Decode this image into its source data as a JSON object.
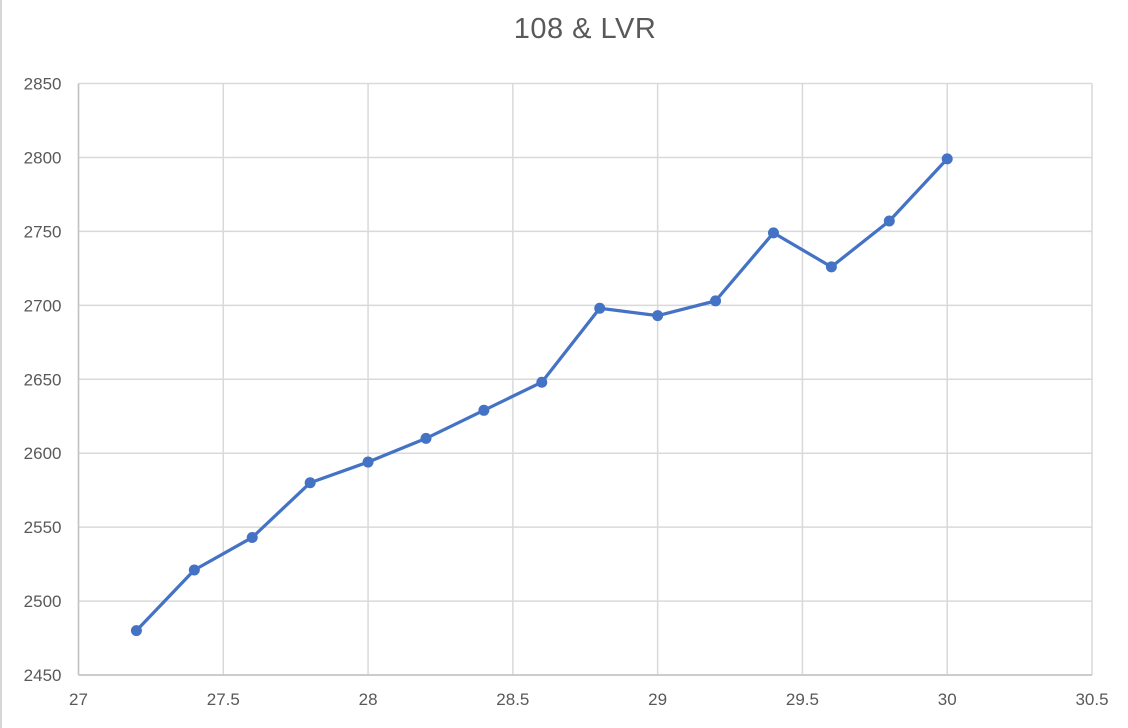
{
  "page": {
    "background": "#ffffff"
  },
  "chart_data": {
    "type": "line",
    "title": "108 & LVR",
    "x": [
      27.2,
      27.4,
      27.6,
      27.8,
      28.0,
      28.2,
      28.4,
      28.6,
      28.8,
      29.0,
      29.2,
      29.4,
      29.6,
      29.8,
      30.0
    ],
    "y": [
      2480,
      2521,
      2543,
      2580,
      2594,
      2610,
      2629,
      2648,
      2698,
      2693,
      2703,
      2749,
      2726,
      2757,
      2799
    ],
    "series_name": "108 & LVR",
    "xlabel": "",
    "ylabel": "",
    "xlim": [
      27,
      30.5
    ],
    "ylim": [
      2450,
      2850
    ],
    "x_ticks": [
      "27",
      "27.5",
      "28",
      "28.5",
      "29",
      "29.5",
      "30",
      "30.5"
    ],
    "x_tick_values": [
      27,
      27.5,
      28,
      28.5,
      29,
      29.5,
      30,
      30.5
    ],
    "y_ticks": [
      "2450",
      "2500",
      "2550",
      "2600",
      "2650",
      "2700",
      "2750",
      "2800",
      "2850"
    ],
    "y_tick_values": [
      2450,
      2500,
      2550,
      2600,
      2650,
      2700,
      2750,
      2800,
      2850
    ],
    "grid": true,
    "legend": "none",
    "marker": "circle",
    "colors": {
      "series": "#4472C4",
      "gridline": "#D9D9D9",
      "axis_line": "#C2C2C2",
      "tick_text": "#595959",
      "title_text": "#595959"
    }
  }
}
